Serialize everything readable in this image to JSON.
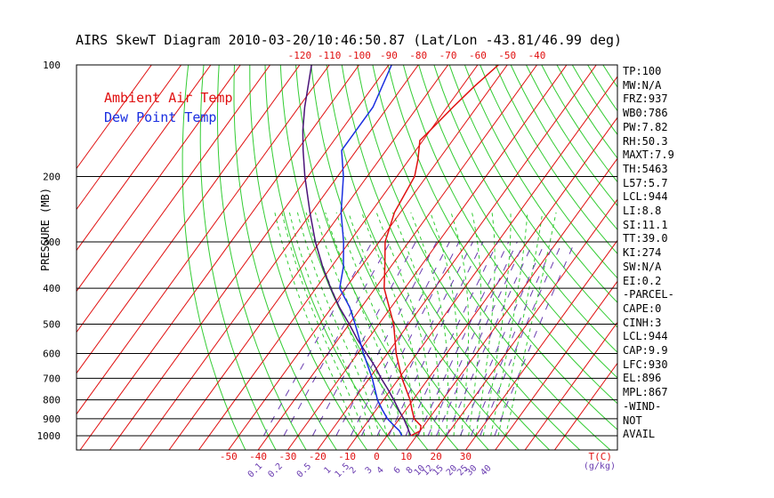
{
  "title": "AIRS SkewT Diagram 2010-03-20/10:46:50.87 (Lat/Lon -43.81/46.99 deg)",
  "legend": [
    {
      "label": "Ambient Air Temp",
      "color": "#e01010"
    },
    {
      "label": "Dew Point Temp",
      "color": "#1a2ee0"
    }
  ],
  "ylabel": "PRESSURE (MB)",
  "xlabel_right": "T(C)",
  "mixing_ratio_unit": "(g/kg)",
  "side_panel": [
    "TP:100",
    "MW:N/A",
    "FRZ:937",
    "WB0:786",
    "PW:7.82",
    "RH:50.3",
    "MAXT:7.9",
    "TH:5463",
    "L57:5.7",
    "LCL:944",
    "LI:8.8",
    "SI:11.1",
    "TT:39.0",
    "KI:274",
    "SW:N/A",
    "EI:0.2",
    "-PARCEL-",
    "CAPE:0",
    "CINH:3",
    "LCL:944",
    "CAP:9.9",
    "LFC:930",
    "EL:896",
    "MPL:867",
    "-WIND-",
    "NOT",
    "AVAIL"
  ],
  "chart_data": {
    "type": "skewt",
    "pressure_ticks": [
      100,
      200,
      300,
      400,
      500,
      600,
      700,
      800,
      900,
      1000
    ],
    "top_temp_ticks": [
      -120,
      -110,
      -100,
      -90,
      -80,
      -70,
      -60,
      -50,
      -40
    ],
    "bottom_temp_ticks": [
      -50,
      -40,
      -30,
      -20,
      -10,
      0,
      10,
      20,
      30
    ],
    "mixing_ratio_labels": [
      "0.1",
      "0.2",
      "0.5",
      "1",
      "1.5",
      "2",
      "3",
      "4",
      "6",
      "8",
      "10",
      "12",
      "15",
      "20",
      "25",
      "30",
      "40"
    ],
    "ambient_temperature": {
      "pressure": [
        1000,
        970,
        940,
        900,
        850,
        800,
        700,
        600,
        500,
        400,
        350,
        300,
        250,
        200,
        180,
        160,
        150,
        130,
        115,
        100
      ],
      "temp_c": [
        8.0,
        10.0,
        9.0,
        5.0,
        2.0,
        -1.0,
        -9.0,
        -17.0,
        -25.0,
        -37.0,
        -42.0,
        -48.0,
        -52.0,
        -54.0,
        -57.0,
        -61.0,
        -60.0,
        -58.0,
        -56.0,
        -53.0
      ]
    },
    "dew_point_temperature": {
      "pressure": [
        1000,
        970,
        940,
        900,
        850,
        800,
        700,
        600,
        500,
        450,
        400,
        350,
        300,
        250,
        200,
        170,
        150,
        130,
        100
      ],
      "temp_c": [
        5.0,
        3.0,
        0.0,
        -4.0,
        -8.0,
        -12.0,
        -19.0,
        -28.0,
        -38.0,
        -44.0,
        -52.0,
        -56.0,
        -62.0,
        -70.0,
        -78.0,
        -85.0,
        -85.0,
        -85.0,
        -89.0
      ]
    },
    "parcel": {
      "pressure": [
        1000,
        944,
        900,
        850,
        800,
        750,
        700,
        650,
        600,
        550,
        500,
        450,
        400,
        350,
        300,
        250,
        200,
        170,
        150,
        130,
        100
      ],
      "temp_c": [
        8.0,
        4.5,
        1.5,
        -2.5,
        -6.5,
        -11.0,
        -16.0,
        -21.0,
        -27.0,
        -33.5,
        -40.0,
        -47.5,
        -55.0,
        -63.0,
        -71.5,
        -80.5,
        -91.0,
        -98.0,
        -103.0,
        -108.0,
        -116.0
      ]
    }
  }
}
